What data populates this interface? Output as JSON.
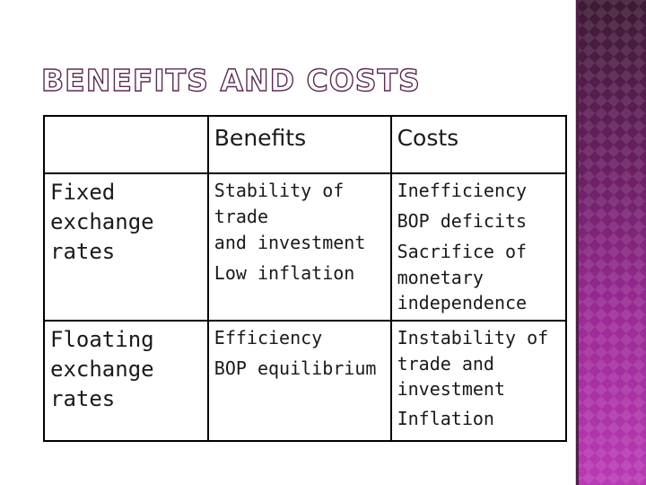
{
  "slide": {
    "title": "BENEFITS AND COSTS"
  },
  "table": {
    "headers": [
      "",
      "Benefits",
      "Costs"
    ],
    "rows": [
      {
        "label": [
          "Fixed",
          "exchange",
          "rates"
        ],
        "benefits": [
          "Stability of trade",
          "and investment",
          "Low inflation"
        ],
        "costs": [
          "Inefficiency",
          "BOP deficits",
          "Sacrifice of",
          "monetary",
          "independence"
        ]
      },
      {
        "label": [
          "Floating",
          "exchange",
          "rates"
        ],
        "benefits": [
          "Efficiency",
          "BOP equilibrium"
        ],
        "costs": [
          "Instability of",
          "trade and",
          "investment",
          "Inflation"
        ]
      }
    ]
  },
  "colors": {
    "accent_band": "#8c1f8a",
    "title_outline": "#5b2a54",
    "table_border": "#000000"
  }
}
